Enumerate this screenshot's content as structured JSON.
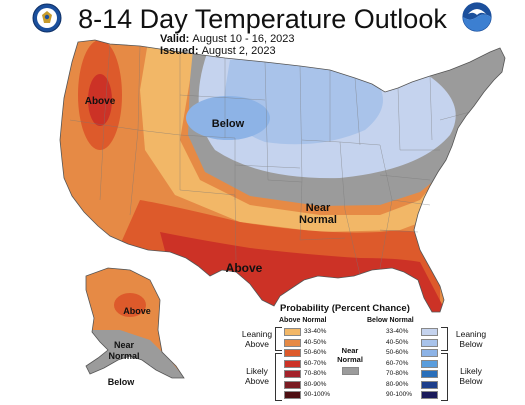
{
  "title": "8-14 Day Temperature Outlook",
  "valid_label": "Valid:",
  "valid_value": "August 10 - 16, 2023",
  "issued_label": "Issued:",
  "issued_value": "August 2, 2023",
  "map_labels": {
    "above_nw": "Above",
    "below_center": "Below",
    "near_normal_1": "Near",
    "near_normal_2": "Normal",
    "above_south": "Above",
    "ak_above": "Above",
    "ak_near_1": "Near",
    "ak_near_2": "Normal",
    "ak_below": "Below"
  },
  "legend": {
    "title": "Probability (Percent Chance)",
    "above_head": "Above Normal",
    "below_head": "Below Normal",
    "leaning_above": [
      "Leaning",
      "Above"
    ],
    "likely_above": [
      "Likely",
      "Above"
    ],
    "leaning_below": [
      "Leaning",
      "Below"
    ],
    "likely_below": [
      "Likely",
      "Below"
    ],
    "near_normal": [
      "Near",
      "Normal"
    ],
    "above_items": [
      {
        "label": "33-40%",
        "color": "#f2b767"
      },
      {
        "label": "40-50%",
        "color": "#e68a45"
      },
      {
        "label": "50-60%",
        "color": "#dd5a2b"
      },
      {
        "label": "60-70%",
        "color": "#cc3226"
      },
      {
        "label": "70-80%",
        "color": "#a3222a"
      },
      {
        "label": "80-90%",
        "color": "#7a1b22"
      },
      {
        "label": "90-100%",
        "color": "#4d0e12"
      }
    ],
    "below_items": [
      {
        "label": "33-40%",
        "color": "#c5d3ee"
      },
      {
        "label": "40-50%",
        "color": "#a9c3ea"
      },
      {
        "label": "50-60%",
        "color": "#8db3e6"
      },
      {
        "label": "60-70%",
        "color": "#5a9ddc"
      },
      {
        "label": "70-80%",
        "color": "#2a6fba"
      },
      {
        "label": "80-90%",
        "color": "#1e3f8c"
      },
      {
        "label": "90-100%",
        "color": "#1a1a5a"
      }
    ],
    "near_color": "#9b9b9b"
  },
  "logos": {
    "left": "noaa-doc-seal-icon",
    "right": "noaa-logo-icon"
  }
}
